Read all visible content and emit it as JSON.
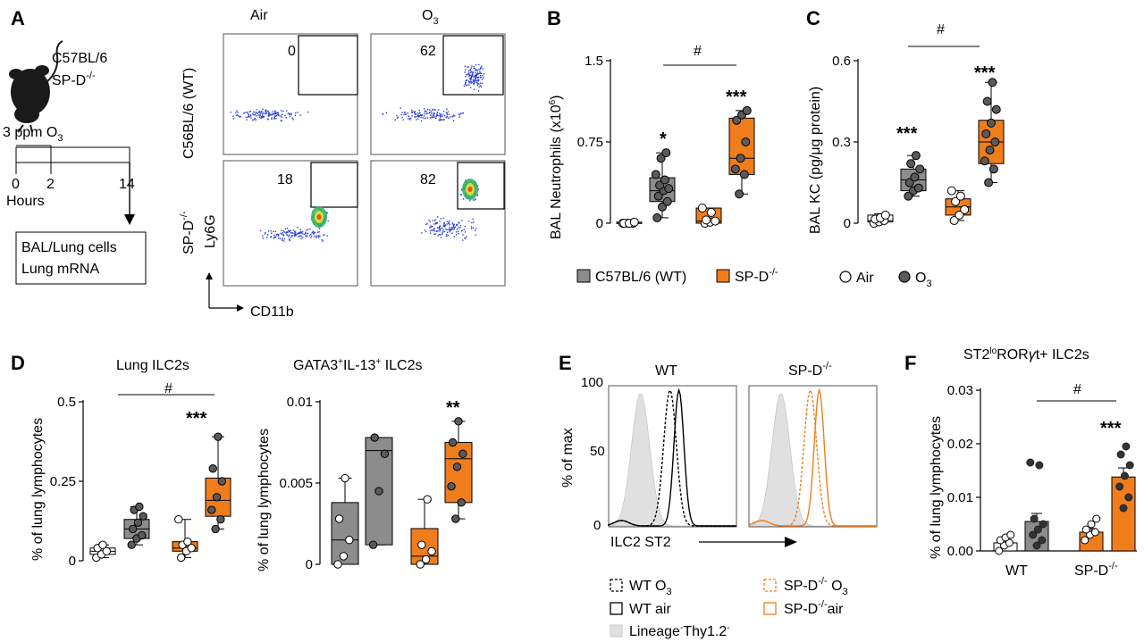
{
  "panels": {
    "A": {
      "label": "A",
      "mouse_lines": [
        "C57BL/6",
        "SP-D"
      ],
      "mouse_sup": "-/-",
      "ozone_text": "3 ppm O",
      "ozone_sub": "3",
      "timeline_ticks": [
        "0",
        "2",
        "14"
      ],
      "timeline_label": "Hours",
      "box_lines": [
        "BAL/Lung cells",
        "Lung mRNA"
      ],
      "flow_col_labels": [
        "Air",
        "O"
      ],
      "flow_col_sub": "3",
      "flow_row_labels": [
        "C56BL/6 (WT)",
        "SP-D"
      ],
      "flow_row_sup": "-/-",
      "gate_values": [
        "0",
        "62",
        "18",
        "82"
      ],
      "flow_y_axis": "Ly6G",
      "flow_x_axis": "CD11b"
    },
    "B": {
      "label": "B",
      "ylabel": "BAL Neutrophils (x10",
      "ylabel_sup": "6",
      "ylabel_end": ")",
      "ticks": [
        "1.5",
        "0.75",
        "0"
      ],
      "sig_marks": [
        "*",
        "***"
      ],
      "hash": "#",
      "legend": [
        {
          "text": "C57BL/6 (WT)",
          "color": "#8c8c8c"
        },
        {
          "text": "SP-D",
          "sup": "-/-",
          "color": "#f07d1c"
        }
      ]
    },
    "C": {
      "label": "C",
      "ylabel": "BAL KC (pg/μg protein)",
      "ticks": [
        "0.6",
        "0.3",
        "0"
      ],
      "sig_marks": [
        "***",
        "***"
      ],
      "hash": "#",
      "legend": [
        {
          "text": "Air",
          "kind": "open"
        },
        {
          "text": "O",
          "sub": "3",
          "kind": "filled"
        }
      ]
    },
    "D": {
      "label": "D",
      "left_title": "Lung ILC2s",
      "right_title_parts": [
        "GATA3",
        "+",
        "IL-13",
        "+",
        " ILC2s"
      ],
      "ylabel": "% of lung lymphocytes",
      "left_ticks": [
        "0.5",
        "0.25",
        "0"
      ],
      "right_ticks": [
        "0.01",
        "0.005",
        "0"
      ],
      "sig_left": "***",
      "sig_right": "**",
      "hash": "#"
    },
    "E": {
      "label": "E",
      "col_labels": [
        "WT",
        "SP-D"
      ],
      "col_sup": "-/-",
      "ylabel": "% of max",
      "ticks": [
        "100",
        "50",
        "0"
      ],
      "xlabel": "ILC2 ST2",
      "legend": [
        {
          "text": "WT O",
          "sub": "3",
          "style": "dashed-black"
        },
        {
          "text": "SP-D",
          "sup": "-/-",
          "tail": " O",
          "sub": "3",
          "style": "dashed-orange"
        },
        {
          "text": "WT air",
          "style": "solid-black"
        },
        {
          "text": "SP-D",
          "sup": "-/-",
          "tail": "air",
          "style": "solid-orange"
        },
        {
          "text": "Lineage",
          "sup": "-",
          "tail": "Thy1.2",
          "sup2": "-",
          "style": "gray-fill"
        }
      ]
    },
    "F": {
      "label": "F",
      "title_parts": [
        "ST2",
        "lo",
        "ROR",
        "γ",
        "t+ ILC2s"
      ],
      "ylabel": "% of lung lymphocytes",
      "ticks": [
        "0.03",
        "0.02",
        "0.01",
        "0.00"
      ],
      "xcats": [
        "WT",
        "SP-D"
      ],
      "xcat_sup": "-/-",
      "sig": "***",
      "hash": "#"
    }
  },
  "colors": {
    "wt": "#8c8c8c",
    "spd": "#f07d1c",
    "dot": "#5a5a5a",
    "gray_fill": "#e0e0e0"
  },
  "chart_data": [
    {
      "panel": "B",
      "type": "box",
      "ylabel": "BAL Neutrophils (x10^6)",
      "ylim": [
        0,
        1.5
      ],
      "groups": [
        {
          "name": "C57BL/6 (WT) Air",
          "min": 0,
          "q1": 0,
          "median": 0,
          "q3": 0.01,
          "max": 0.01,
          "points": [
            0,
            0,
            0,
            0,
            0,
            0.01
          ]
        },
        {
          "name": "C57BL/6 (WT) O3",
          "min": 0.05,
          "q1": 0.2,
          "median": 0.3,
          "q3": 0.42,
          "max": 0.65,
          "points": [
            0.05,
            0.15,
            0.2,
            0.25,
            0.3,
            0.32,
            0.35,
            0.4,
            0.45,
            0.6,
            0.65
          ]
        },
        {
          "name": "SP-D-/- Air",
          "min": 0,
          "q1": 0,
          "median": 0.02,
          "q3": 0.14,
          "max": 0.14,
          "points": [
            0,
            0.01,
            0.02,
            0.03,
            0.1,
            0.14
          ]
        },
        {
          "name": "SP-D-/- O3",
          "min": 0.27,
          "q1": 0.45,
          "median": 0.6,
          "q3": 0.97,
          "max": 1.04,
          "points": [
            0.27,
            0.45,
            0.5,
            0.6,
            0.75,
            0.95,
            1.0,
            1.04
          ]
        }
      ]
    },
    {
      "panel": "C",
      "type": "box",
      "ylabel": "BAL KC (pg/μg protein)",
      "ylim": [
        0,
        0.6
      ],
      "groups": [
        {
          "name": "C57BL/6 (WT) Air",
          "min": 0,
          "q1": 0.005,
          "median": 0.01,
          "q3": 0.03,
          "max": 0.035,
          "points": [
            0,
            0.005,
            0.01,
            0.015,
            0.02,
            0.03
          ]
        },
        {
          "name": "C57BL/6 (WT) O3",
          "min": 0.1,
          "q1": 0.12,
          "median": 0.16,
          "q3": 0.2,
          "max": 0.25,
          "points": [
            0.1,
            0.12,
            0.13,
            0.15,
            0.17,
            0.2,
            0.22,
            0.25
          ]
        },
        {
          "name": "SP-D-/- Air",
          "min": 0.01,
          "q1": 0.03,
          "median": 0.06,
          "q3": 0.09,
          "max": 0.12,
          "points": [
            0.01,
            0.03,
            0.05,
            0.08,
            0.1,
            0.12
          ]
        },
        {
          "name": "SP-D-/- O3",
          "min": 0.15,
          "q1": 0.22,
          "median": 0.3,
          "q3": 0.38,
          "max": 0.52,
          "points": [
            0.15,
            0.2,
            0.23,
            0.27,
            0.3,
            0.33,
            0.37,
            0.42,
            0.45,
            0.52
          ]
        }
      ]
    },
    {
      "panel": "D-left",
      "type": "box",
      "title": "Lung ILC2s",
      "ylabel": "% of lung lymphocytes",
      "ylim": [
        0,
        0.5
      ],
      "groups": [
        {
          "name": "C57BL/6 (WT) Air",
          "min": 0.01,
          "q1": 0.02,
          "median": 0.03,
          "q3": 0.04,
          "max": 0.05,
          "points": [
            0.01,
            0.02,
            0.03,
            0.04,
            0.05
          ]
        },
        {
          "name": "C57BL/6 (WT) O3",
          "min": 0.05,
          "q1": 0.07,
          "median": 0.1,
          "q3": 0.13,
          "max": 0.17,
          "points": [
            0.05,
            0.07,
            0.08,
            0.1,
            0.12,
            0.14,
            0.16,
            0.17
          ]
        },
        {
          "name": "SP-D-/- Air",
          "min": 0.01,
          "q1": 0.03,
          "median": 0.04,
          "q3": 0.06,
          "max": 0.13,
          "points": [
            0.01,
            0.03,
            0.04,
            0.05,
            0.06,
            0.13
          ]
        },
        {
          "name": "SP-D-/- O3",
          "min": 0.1,
          "q1": 0.14,
          "median": 0.19,
          "q3": 0.26,
          "max": 0.39,
          "points": [
            0.1,
            0.13,
            0.16,
            0.2,
            0.25,
            0.29,
            0.39
          ]
        }
      ]
    },
    {
      "panel": "D-right",
      "type": "box",
      "title": "GATA3+IL-13+ ILC2s",
      "ylabel": "% of lung lymphocytes",
      "ylim": [
        0,
        0.01
      ],
      "groups": [
        {
          "name": "C57BL/6 (WT) Air",
          "min": 0,
          "q1": 0,
          "median": 0.0015,
          "q3": 0.0038,
          "max": 0.0053,
          "points": [
            0,
            0.0005,
            0.0015,
            0.0028,
            0.0053
          ]
        },
        {
          "name": "C57BL/6 (WT) O3",
          "min": 0.0012,
          "q1": 0.0012,
          "median": 0.007,
          "q3": 0.0078,
          "max": 0.0078,
          "points": [
            0.0012,
            0.0045,
            0.0068,
            0.0078
          ]
        },
        {
          "name": "SP-D-/- Air",
          "min": 0,
          "q1": 0,
          "median": 0.0005,
          "q3": 0.0022,
          "max": 0.004,
          "points": [
            0,
            0.0003,
            0.0008,
            0.0012,
            0.004
          ]
        },
        {
          "name": "SP-D-/- O3",
          "min": 0.0028,
          "q1": 0.0038,
          "median": 0.0065,
          "q3": 0.0075,
          "max": 0.0088,
          "points": [
            0.0028,
            0.0038,
            0.0048,
            0.006,
            0.0068,
            0.0075,
            0.0088
          ]
        }
      ]
    },
    {
      "panel": "F",
      "type": "bar",
      "title": "ST2loRORγt+ ILC2s",
      "ylabel": "% of lung lymphocytes",
      "ylim": [
        0,
        0.03
      ],
      "categories": [
        "WT",
        "SP-D-/-"
      ],
      "series": [
        {
          "name": "Air",
          "values": [
            0.0015,
            0.0035
          ],
          "errors": [
            0.0005,
            0.0007
          ],
          "points": [
            [
              0,
              0.001,
              0.0015,
              0.002,
              0.0025,
              0.003
            ],
            [
              0.002,
              0.003,
              0.0035,
              0.004,
              0.005,
              0.006
            ]
          ]
        },
        {
          "name": "O3",
          "values": [
            0.0055,
            0.0138
          ],
          "errors": [
            0.0015,
            0.0017
          ],
          "points": [
            [
              0.001,
              0.002,
              0.003,
              0.004,
              0.005,
              0.006,
              0.016,
              0.0165
            ],
            [
              0.008,
              0.01,
              0.012,
              0.014,
              0.016,
              0.018,
              0.0195
            ]
          ]
        }
      ]
    }
  ]
}
